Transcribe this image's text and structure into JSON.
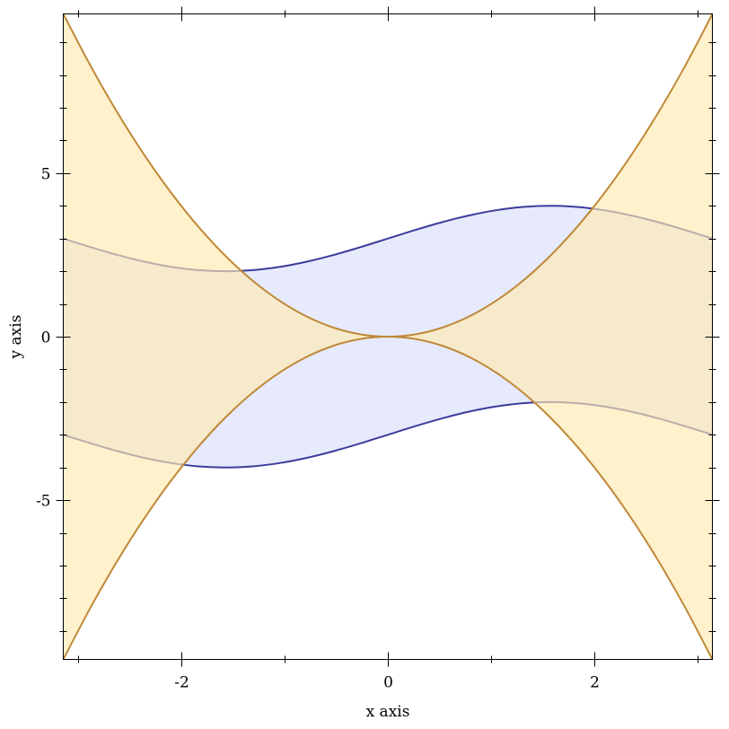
{
  "chart_data": {
    "type": "area",
    "title": "",
    "xlabel": "x axis",
    "ylabel": "y axis",
    "xlim": [
      -3.1416,
      3.1416
    ],
    "ylim": [
      -9.8696,
      9.8696
    ],
    "x_ticks_major": [
      -2,
      0,
      2
    ],
    "x_ticks_minor": [
      -3,
      -1,
      1,
      3
    ],
    "y_ticks_major": [
      -5,
      0,
      5
    ],
    "y_ticks_minor": [
      -9,
      -8,
      -7,
      -6,
      -4,
      -3,
      -2,
      -1,
      1,
      2,
      3,
      4,
      6,
      7,
      8,
      9
    ],
    "x_tick_labels": [
      "-2",
      "0",
      "2"
    ],
    "y_tick_labels": [
      "-5",
      "0",
      "5"
    ],
    "grid": false,
    "x": [
      -3.1416,
      -2.8798,
      -2.618,
      -2.3562,
      -2.0944,
      -1.8326,
      -1.5708,
      -1.309,
      -1.0472,
      -0.7854,
      -0.5236,
      -0.2618,
      0,
      0.2618,
      0.5236,
      0.7854,
      1.0472,
      1.309,
      1.5708,
      1.8326,
      2.0944,
      2.3562,
      2.618,
      2.8798,
      3.1416
    ],
    "series": [
      {
        "kind": "interval",
        "fill_color": "#e6eafc",
        "line_color": "#3c3c9c",
        "upper": [
          3,
          2.741,
          2.5,
          2.293,
          2.134,
          2.034,
          2,
          2.034,
          2.134,
          2.293,
          2.5,
          2.741,
          3,
          3.259,
          3.5,
          3.707,
          3.866,
          3.966,
          4,
          3.966,
          3.866,
          3.707,
          3.5,
          3.259,
          3
        ],
        "lower": [
          -3,
          -3.259,
          -3.5,
          -3.707,
          -3.866,
          -3.966,
          -4,
          -3.966,
          -3.866,
          -3.707,
          -3.5,
          -3.259,
          -3,
          -2.741,
          -2.5,
          -2.293,
          -2.134,
          -2.034,
          -2,
          -2.034,
          -2.134,
          -2.293,
          -2.5,
          -2.741,
          -3
        ]
      },
      {
        "kind": "interval",
        "fill_color": "#ffeab0",
        "line_color": "#c08838",
        "upper": [
          9.8696,
          8.2932,
          6.8539,
          5.5517,
          4.3865,
          3.3584,
          2.4674,
          1.7135,
          1.0966,
          0.6169,
          0.2742,
          0.0685,
          0,
          0.0685,
          0.2742,
          0.6169,
          1.0966,
          1.7135,
          2.4674,
          3.3584,
          4.3865,
          5.5517,
          6.8539,
          8.2932,
          9.8696
        ],
        "lower": [
          -9.8696,
          -8.2932,
          -6.8539,
          -5.5517,
          -4.3865,
          -3.3584,
          -2.4674,
          -1.7135,
          -1.0966,
          -0.6169,
          -0.2742,
          -0.0685,
          0,
          -0.0685,
          -0.2742,
          -0.6169,
          -1.0966,
          -1.7135,
          -2.4674,
          -3.3584,
          -4.3865,
          -5.5517,
          -6.8539,
          -8.2932,
          -9.8696
        ]
      }
    ]
  }
}
